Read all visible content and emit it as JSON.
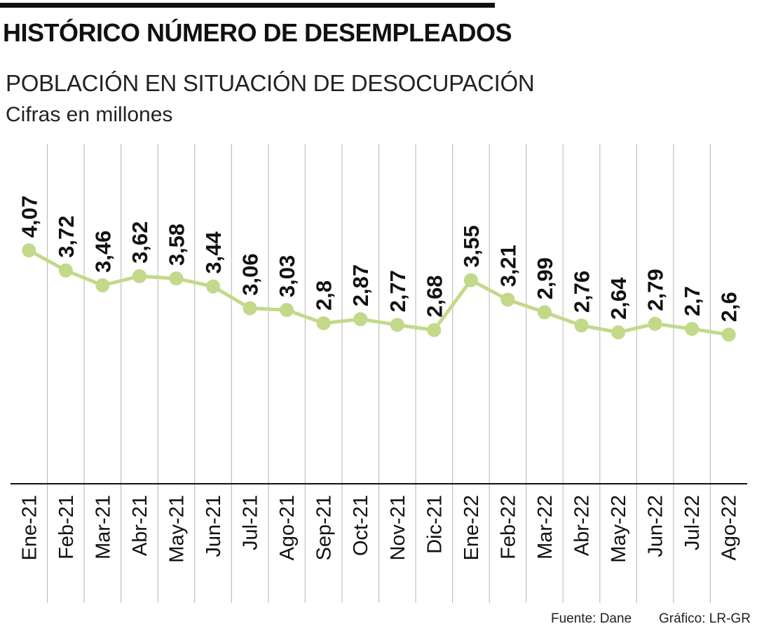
{
  "header": {
    "title": "HISTÓRICO NÚMERO DE DESEMPLEADOS",
    "subtitle": "POBLACIÓN EN SITUACIÓN DE DESOCUPACIÓN",
    "units": "Cifras en millones"
  },
  "footer": {
    "source": "Fuente: Dane",
    "credit": "Gráfico: LR-GR"
  },
  "colors": {
    "line": "#c2d98a",
    "marker": "#c2d98a",
    "grid": "#bfbfbf",
    "axis": "#111111",
    "text": "#111111"
  },
  "chart_data": {
    "type": "line",
    "title": "HISTÓRICO NÚMERO DE DESEMPLEADOS",
    "subtitle": "POBLACIÓN EN SITUACIÓN DE DESOCUPACIÓN",
    "ylabel": "Cifras en millones",
    "xlabel": "",
    "categories": [
      "Ene-21",
      "Feb-21",
      "Mar-21",
      "Abr-21",
      "May-21",
      "Jun-21",
      "Jul-21",
      "Ago-21",
      "Sep-21",
      "Oct-21",
      "Nov-21",
      "Dic-21",
      "Ene-22",
      "Feb-22",
      "Mar-22",
      "Abr-22",
      "May-22",
      "Jun-22",
      "Jul-22",
      "Ago-22"
    ],
    "values": [
      4.07,
      3.72,
      3.46,
      3.62,
      3.58,
      3.44,
      3.06,
      3.03,
      2.8,
      2.87,
      2.77,
      2.68,
      3.55,
      3.21,
      2.99,
      2.76,
      2.64,
      2.79,
      2.7,
      2.6
    ],
    "value_labels": [
      "4,07",
      "3,72",
      "3,46",
      "3,62",
      "3,58",
      "3,44",
      "3,06",
      "3,03",
      "2,8",
      "2,87",
      "2,77",
      "2,68",
      "3,55",
      "3,21",
      "2,99",
      "2,76",
      "2,64",
      "2,79",
      "2,7",
      "2,6"
    ],
    "ylim": [
      0,
      6.2
    ],
    "grid": "vertical"
  }
}
